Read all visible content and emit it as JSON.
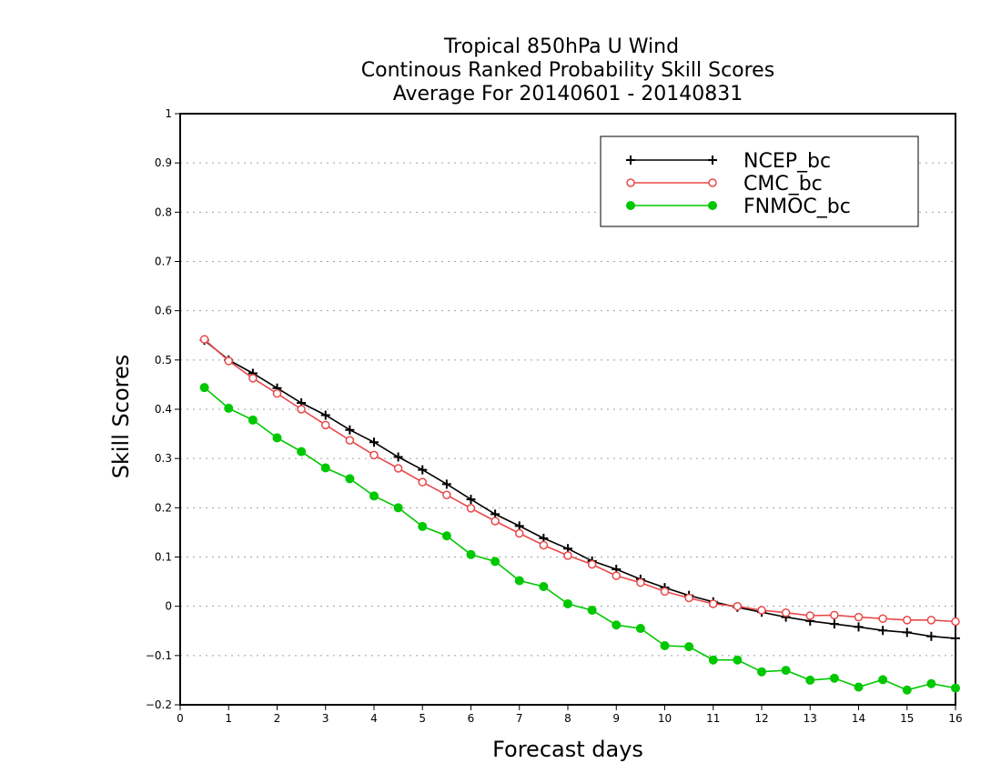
{
  "chart_data": {
    "type": "line",
    "title_lines": [
      "Tropical 850hPa U Wind",
      "Continous Ranked Probability Skill Scores",
      "Average For 20140601 - 20140831"
    ],
    "xlabel": "Forecast days",
    "ylabel": "Skill Scores",
    "xlim": [
      0,
      16
    ],
    "ylim": [
      -0.2,
      1
    ],
    "xticks": [
      "0",
      "1",
      "2",
      "3",
      "4",
      "5",
      "6",
      "7",
      "8",
      "9",
      "10",
      "11",
      "12",
      "13",
      "14",
      "15",
      "16"
    ],
    "yticks": [
      "−0.2",
      "−0.1",
      "0",
      "0.1",
      "0.2",
      "0.3",
      "0.4",
      "0.5",
      "0.6",
      "0.7",
      "0.8",
      "0.9",
      "1"
    ],
    "grid": "horizontal dotted",
    "legend_position": "top-right",
    "x": [
      0.5,
      1,
      1.5,
      2,
      2.5,
      3,
      3.5,
      4,
      4.5,
      5,
      5.5,
      6,
      6.5,
      7,
      7.5,
      8,
      8.5,
      9,
      9.5,
      10,
      10.5,
      11,
      11.5,
      12,
      12.5,
      13,
      13.5,
      14,
      14.5,
      15,
      15.5,
      16
    ],
    "series": [
      {
        "name": "NCEP_bc",
        "color": "#000000",
        "marker": "plus",
        "values": [
          0.54,
          0.5,
          0.473,
          0.443,
          0.413,
          0.388,
          0.358,
          0.333,
          0.303,
          0.277,
          0.248,
          0.217,
          0.187,
          0.163,
          0.138,
          0.117,
          0.092,
          0.075,
          0.055,
          0.038,
          0.022,
          0.009,
          -0.002,
          -0.012,
          -0.022,
          -0.03,
          -0.036,
          -0.042,
          -0.049,
          -0.053,
          -0.061,
          -0.065
        ]
      },
      {
        "name": "CMC_bc",
        "color": "#e8494a",
        "marker": "open-circle",
        "values": [
          0.542,
          0.498,
          0.463,
          0.432,
          0.4,
          0.368,
          0.337,
          0.307,
          0.28,
          0.252,
          0.226,
          0.199,
          0.173,
          0.148,
          0.124,
          0.103,
          0.085,
          0.062,
          0.048,
          0.03,
          0.017,
          0.005,
          0.0,
          -0.008,
          -0.013,
          -0.019,
          -0.018,
          -0.022,
          -0.025,
          -0.028,
          -0.028,
          -0.031
        ]
      },
      {
        "name": "FNMOC_bc",
        "color": "#00c800",
        "marker": "filled-circle",
        "values": [
          0.444,
          0.402,
          0.378,
          0.342,
          0.314,
          0.281,
          0.259,
          0.224,
          0.2,
          0.162,
          0.143,
          0.105,
          0.091,
          0.052,
          0.04,
          0.005,
          -0.008,
          -0.038,
          -0.045,
          -0.08,
          -0.082,
          -0.109,
          -0.109,
          -0.133,
          -0.13,
          -0.15,
          -0.146,
          -0.164,
          -0.149,
          -0.17,
          -0.157,
          -0.166
        ]
      }
    ]
  }
}
